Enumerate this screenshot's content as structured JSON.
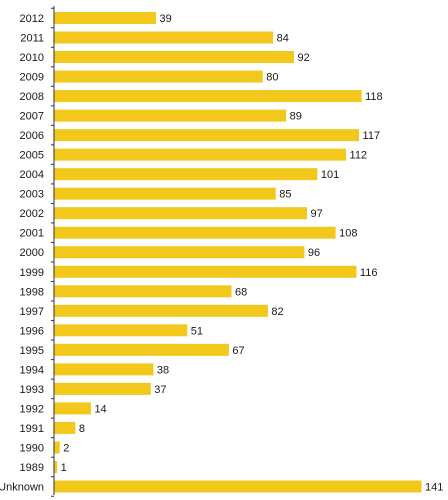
{
  "chart_data": {
    "type": "bar",
    "orientation": "horizontal",
    "categories": [
      "2012",
      "2011",
      "2010",
      "2009",
      "2008",
      "2007",
      "2006",
      "2005",
      "2004",
      "2003",
      "2002",
      "2001",
      "2000",
      "1999",
      "1998",
      "1997",
      "1996",
      "1995",
      "1994",
      "1993",
      "1992",
      "1991",
      "1990",
      "1989",
      "Unknown"
    ],
    "values": [
      39,
      84,
      92,
      80,
      118,
      89,
      117,
      112,
      101,
      85,
      97,
      108,
      96,
      116,
      68,
      82,
      51,
      67,
      38,
      37,
      14,
      8,
      2,
      1,
      141
    ],
    "title": "",
    "xlabel": "",
    "ylabel": "",
    "xlim": [
      0,
      141
    ],
    "grid": false,
    "legend": "none",
    "bar_color": "#f2c81c",
    "axis_color": "#333333"
  }
}
